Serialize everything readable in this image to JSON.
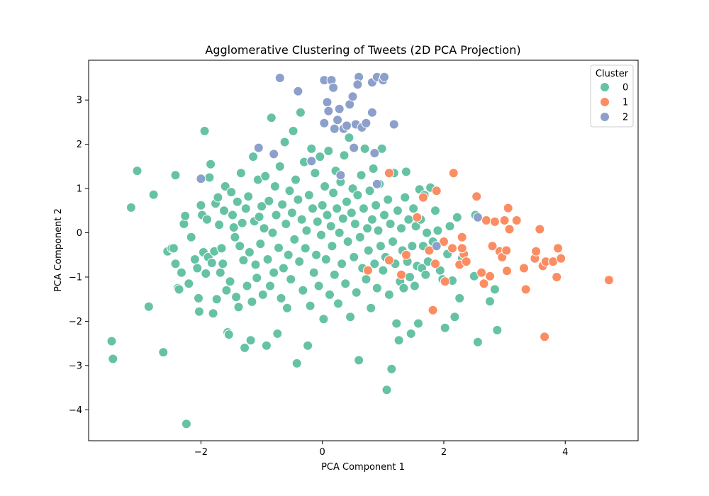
{
  "chart_data": {
    "type": "scatter",
    "title": "Agglomerative Clustering of Tweets (2D PCA Projection)",
    "xlabel": "PCA Component 1",
    "ylabel": "PCA Component 2",
    "xlim": [
      -3.85,
      5.2
    ],
    "ylim": [
      -4.7,
      3.9
    ],
    "xticks": [
      -2,
      0,
      2,
      4
    ],
    "yticks": [
      -4,
      -3,
      -2,
      -1,
      0,
      1,
      2,
      3
    ],
    "grid": false,
    "legend": {
      "title": "Cluster",
      "placement": "top-right"
    },
    "series": [
      {
        "name": "0",
        "color": "#66c2a5",
        "points": [
          [
            -3.47,
            -2.45
          ],
          [
            -3.45,
            -2.85
          ],
          [
            -3.15,
            0.57
          ],
          [
            -3.05,
            1.4
          ],
          [
            -2.86,
            -1.67
          ],
          [
            -2.78,
            0.86
          ],
          [
            -2.62,
            -2.7
          ],
          [
            -2.55,
            -0.42
          ],
          [
            -2.48,
            -0.35
          ],
          [
            -2.45,
            -0.35
          ],
          [
            -2.42,
            -0.7
          ],
          [
            -2.42,
            1.3
          ],
          [
            -2.38,
            -1.25
          ],
          [
            -2.36,
            -1.28
          ],
          [
            -2.32,
            -0.9
          ],
          [
            -2.28,
            0.2
          ],
          [
            -2.26,
            0.38
          ],
          [
            -2.24,
            -4.32
          ],
          [
            -2.2,
            -1.15
          ],
          [
            -2.16,
            -0.1
          ],
          [
            -2.1,
            -0.6
          ],
          [
            -2.06,
            -0.8
          ],
          [
            -2.04,
            -1.48
          ],
          [
            -2.03,
            -1.78
          ],
          [
            -2.0,
            0.62
          ],
          [
            -1.98,
            0.4
          ],
          [
            -1.96,
            -0.44
          ],
          [
            -1.94,
            2.3
          ],
          [
            -1.92,
            -0.92
          ],
          [
            -1.9,
            0.3
          ],
          [
            -1.88,
            -0.55
          ],
          [
            -1.86,
            1.25
          ],
          [
            -1.84,
            1.55
          ],
          [
            -1.82,
            -0.68
          ],
          [
            -1.8,
            -1.82
          ],
          [
            -1.78,
            -0.42
          ],
          [
            -1.76,
            0.66
          ],
          [
            -1.74,
            -1.5
          ],
          [
            -1.72,
            0.8
          ],
          [
            -1.7,
            0.18
          ],
          [
            -1.68,
            -0.9
          ],
          [
            -1.66,
            -0.35
          ],
          [
            -1.64,
            -0.7
          ],
          [
            -1.62,
            0.5
          ],
          [
            -1.6,
            1.05
          ],
          [
            -1.58,
            -1.3
          ],
          [
            -1.56,
            -2.25
          ],
          [
            -1.54,
            -2.3
          ],
          [
            -1.52,
            -1.1
          ],
          [
            -1.5,
            0.92
          ],
          [
            -1.48,
            0.4
          ],
          [
            -1.46,
            0.12
          ],
          [
            -1.44,
            -0.1
          ],
          [
            -1.42,
            -1.45
          ],
          [
            -1.4,
            0.7
          ],
          [
            -1.38,
            -1.68
          ],
          [
            -1.36,
            -0.3
          ],
          [
            -1.34,
            1.35
          ],
          [
            -1.32,
            0.22
          ],
          [
            -1.3,
            -0.62
          ],
          [
            -1.28,
            -2.6
          ],
          [
            -1.26,
            0.55
          ],
          [
            -1.24,
            -1.2
          ],
          [
            -1.22,
            0.82
          ],
          [
            -1.2,
            -0.44
          ],
          [
            -1.18,
            -2.43
          ],
          [
            -1.16,
            -1.56
          ],
          [
            -1.14,
            1.72
          ],
          [
            -1.12,
            0.26
          ],
          [
            -1.1,
            -0.72
          ],
          [
            -1.08,
            -1.02
          ],
          [
            -1.06,
            1.2
          ],
          [
            -1.04,
            0.36
          ],
          [
            -1.02,
            -0.25
          ],
          [
            -1.0,
            0.6
          ],
          [
            -0.98,
            -1.4
          ],
          [
            -0.96,
            0.1
          ],
          [
            -0.94,
            1.28
          ],
          [
            -0.92,
            -2.55
          ],
          [
            -0.9,
            -0.6
          ],
          [
            -0.88,
            0.72
          ],
          [
            -0.86,
            -1.2
          ],
          [
            -0.84,
            2.6
          ],
          [
            -0.82,
            0.0
          ],
          [
            -0.8,
            -0.9
          ],
          [
            -0.78,
            1.05
          ],
          [
            -0.76,
            0.4
          ],
          [
            -0.74,
            -2.28
          ],
          [
            -0.72,
            -0.34
          ],
          [
            -0.7,
            1.5
          ],
          [
            -0.68,
            -1.48
          ],
          [
            -0.66,
            0.64
          ],
          [
            -0.64,
            -0.8
          ],
          [
            -0.62,
            2.05
          ],
          [
            -0.6,
            0.2
          ],
          [
            -0.58,
            -1.7
          ],
          [
            -0.56,
            -0.5
          ],
          [
            -0.54,
            0.95
          ],
          [
            -0.52,
            -1.05
          ],
          [
            -0.5,
            0.45
          ],
          [
            -0.48,
            2.3
          ],
          [
            -0.46,
            -0.15
          ],
          [
            -0.44,
            1.2
          ],
          [
            -0.42,
            -2.95
          ],
          [
            -0.4,
            0.75
          ],
          [
            -0.38,
            -0.65
          ],
          [
            -0.36,
            2.72
          ],
          [
            -0.34,
            0.3
          ],
          [
            -0.32,
            -1.3
          ],
          [
            -0.3,
            1.6
          ],
          [
            -0.28,
            -0.35
          ],
          [
            -0.26,
            0.05
          ],
          [
            -0.24,
            -2.55
          ],
          [
            -0.22,
            0.85
          ],
          [
            -0.2,
            -1.65
          ],
          [
            -0.18,
            1.9
          ],
          [
            -0.16,
            0.55
          ],
          [
            -0.14,
            -0.9
          ],
          [
            -0.12,
            1.35
          ],
          [
            -0.1,
            -0.5
          ],
          [
            -0.08,
            0.25
          ],
          [
            -0.06,
            -1.2
          ],
          [
            -0.04,
            1.72
          ],
          [
            -0.02,
            -0.05
          ],
          [
            0.0,
            0.62
          ],
          [
            0.02,
            -1.95
          ],
          [
            0.04,
            1.05
          ],
          [
            0.06,
            -0.6
          ],
          [
            0.08,
            0.4
          ],
          [
            0.1,
            1.85
          ],
          [
            0.12,
            -1.4
          ],
          [
            0.14,
            0.15
          ],
          [
            0.16,
            -0.3
          ],
          [
            0.18,
            0.9
          ],
          [
            0.2,
            -0.95
          ],
          [
            0.22,
            1.4
          ],
          [
            0.24,
            0.55
          ],
          [
            0.26,
            -1.6
          ],
          [
            0.28,
            0.0
          ],
          [
            0.3,
            1.15
          ],
          [
            0.32,
            -0.7
          ],
          [
            0.34,
            0.32
          ],
          [
            0.36,
            1.75
          ],
          [
            0.38,
            -1.15
          ],
          [
            0.4,
            0.7
          ],
          [
            0.42,
            -0.2
          ],
          [
            0.44,
            2.15
          ],
          [
            0.46,
            -1.9
          ],
          [
            0.48,
            0.45
          ],
          [
            0.5,
            1.0
          ],
          [
            0.52,
            -0.55
          ],
          [
            0.54,
            0.2
          ],
          [
            0.56,
            -1.35
          ],
          [
            0.58,
            0.85
          ],
          [
            0.6,
            -2.88
          ],
          [
            0.62,
            -0.1
          ],
          [
            0.64,
            1.3
          ],
          [
            0.66,
            -0.8
          ],
          [
            0.68,
            0.55
          ],
          [
            0.7,
            1.9
          ],
          [
            0.72,
            -1.05
          ],
          [
            0.74,
            0.1
          ],
          [
            0.76,
            -0.4
          ],
          [
            0.78,
            0.95
          ],
          [
            0.8,
            -1.7
          ],
          [
            0.82,
            0.3
          ],
          [
            0.84,
            1.45
          ],
          [
            0.86,
            -0.7
          ],
          [
            0.88,
            0.62
          ],
          [
            0.9,
            -1.25
          ],
          [
            0.92,
            0.05
          ],
          [
            0.94,
            1.1
          ],
          [
            0.96,
            -0.3
          ],
          [
            0.98,
            1.9
          ],
          [
            1.0,
            -0.85
          ],
          [
            1.02,
            0.4
          ],
          [
            1.04,
            -0.55
          ],
          [
            1.06,
            -3.55
          ],
          [
            1.08,
            0.75
          ],
          [
            1.1,
            -1.4
          ],
          [
            1.12,
            0.2
          ],
          [
            1.14,
            -3.08
          ],
          [
            1.16,
            -0.2
          ],
          [
            1.18,
            1.35
          ],
          [
            1.2,
            -0.7
          ],
          [
            1.22,
            -2.05
          ],
          [
            1.24,
            0.5
          ],
          [
            1.26,
            -2.43
          ],
          [
            1.28,
            -1.1
          ],
          [
            1.3,
            0.1
          ],
          [
            1.32,
            -0.4
          ],
          [
            1.34,
            -1.25
          ],
          [
            1.36,
            0.8
          ],
          [
            1.38,
            1.38
          ],
          [
            1.4,
            -0.65
          ],
          [
            1.42,
            0.3
          ],
          [
            1.44,
            -1.0
          ],
          [
            1.46,
            -2.28
          ],
          [
            1.48,
            -0.3
          ],
          [
            1.5,
            0.55
          ],
          [
            1.52,
            -1.2
          ],
          [
            1.54,
            0.15
          ],
          [
            1.56,
            -0.75
          ],
          [
            1.58,
            -2.05
          ],
          [
            1.6,
            0.98
          ],
          [
            1.62,
            0.3
          ],
          [
            1.64,
            -0.8
          ],
          [
            1.66,
            -0.3
          ],
          [
            1.68,
            0.85
          ],
          [
            1.7,
            -0.95
          ],
          [
            1.72,
            0.0
          ],
          [
            1.74,
            -0.65
          ],
          [
            1.78,
            1.02
          ],
          [
            1.82,
            -0.2
          ],
          [
            1.86,
            0.5
          ],
          [
            1.9,
            0.05
          ],
          [
            1.94,
            -0.85
          ],
          [
            1.98,
            -1.05
          ],
          [
            2.02,
            -2.15
          ],
          [
            2.06,
            -0.48
          ],
          [
            2.1,
            0.15
          ],
          [
            2.14,
            -1.08
          ],
          [
            2.18,
            -1.9
          ],
          [
            2.22,
            0.35
          ],
          [
            2.26,
            -1.48
          ],
          [
            2.3,
            -0.58
          ],
          [
            2.5,
            -0.98
          ],
          [
            2.56,
            -2.47
          ],
          [
            2.76,
            -1.55
          ],
          [
            2.84,
            -1.28
          ],
          [
            2.88,
            -2.2
          ],
          [
            2.52,
            0.4
          ]
        ]
      },
      {
        "name": "1",
        "color": "#fc8d62",
        "points": [
          [
            0.75,
            -0.85
          ],
          [
            1.1,
            -0.62
          ],
          [
            1.1,
            1.35
          ],
          [
            1.3,
            -0.95
          ],
          [
            1.38,
            -0.5
          ],
          [
            1.56,
            0.35
          ],
          [
            1.66,
            0.8
          ],
          [
            1.76,
            -0.4
          ],
          [
            1.82,
            -1.75
          ],
          [
            1.86,
            -0.7
          ],
          [
            1.88,
            0.95
          ],
          [
            2.0,
            -0.2
          ],
          [
            2.02,
            -1.1
          ],
          [
            2.14,
            -0.35
          ],
          [
            2.16,
            1.35
          ],
          [
            2.26,
            -0.72
          ],
          [
            2.3,
            -0.1
          ],
          [
            2.33,
            -0.48
          ],
          [
            2.37,
            -0.65
          ],
          [
            2.3,
            -0.35
          ],
          [
            2.54,
            0.82
          ],
          [
            2.66,
            -1.15
          ],
          [
            2.7,
            0.28
          ],
          [
            2.76,
            -0.98
          ],
          [
            2.8,
            -0.3
          ],
          [
            2.84,
            0.25
          ],
          [
            2.92,
            -0.42
          ],
          [
            2.96,
            -0.55
          ],
          [
            3.0,
            0.28
          ],
          [
            3.04,
            -0.86
          ],
          [
            3.06,
            0.56
          ],
          [
            3.08,
            0.08
          ],
          [
            3.2,
            0.28
          ],
          [
            3.32,
            -0.8
          ],
          [
            3.35,
            -1.28
          ],
          [
            3.5,
            -0.58
          ],
          [
            3.52,
            -0.42
          ],
          [
            3.58,
            0.08
          ],
          [
            3.63,
            -0.75
          ],
          [
            3.66,
            -2.35
          ],
          [
            3.68,
            -0.65
          ],
          [
            3.8,
            -0.65
          ],
          [
            3.86,
            -1.0
          ],
          [
            3.88,
            -0.35
          ],
          [
            3.93,
            -0.58
          ],
          [
            4.72,
            -1.07
          ],
          [
            3.03,
            -0.4
          ],
          [
            2.62,
            -0.9
          ]
        ]
      },
      {
        "name": "2",
        "color": "#8da0cb",
        "points": [
          [
            -2.0,
            1.22
          ],
          [
            -1.05,
            1.92
          ],
          [
            -0.8,
            1.78
          ],
          [
            -0.7,
            3.5
          ],
          [
            -0.4,
            3.2
          ],
          [
            -0.18,
            1.62
          ],
          [
            0.03,
            3.45
          ],
          [
            0.03,
            2.48
          ],
          [
            0.08,
            2.95
          ],
          [
            0.1,
            2.75
          ],
          [
            0.15,
            3.45
          ],
          [
            0.18,
            3.28
          ],
          [
            0.2,
            2.35
          ],
          [
            0.25,
            2.55
          ],
          [
            0.28,
            2.8
          ],
          [
            0.35,
            2.35
          ],
          [
            0.4,
            2.42
          ],
          [
            0.45,
            2.9
          ],
          [
            0.5,
            3.08
          ],
          [
            0.52,
            1.92
          ],
          [
            0.55,
            2.45
          ],
          [
            0.6,
            3.52
          ],
          [
            0.58,
            3.35
          ],
          [
            0.65,
            2.38
          ],
          [
            0.72,
            2.48
          ],
          [
            0.82,
            3.4
          ],
          [
            0.82,
            2.72
          ],
          [
            0.86,
            1.8
          ],
          [
            0.9,
            3.52
          ],
          [
            1.0,
            3.45
          ],
          [
            1.02,
            3.52
          ],
          [
            1.18,
            2.45
          ],
          [
            0.3,
            1.3
          ],
          [
            0.9,
            1.1
          ],
          [
            1.88,
            -0.3
          ],
          [
            2.56,
            0.35
          ]
        ]
      }
    ]
  }
}
